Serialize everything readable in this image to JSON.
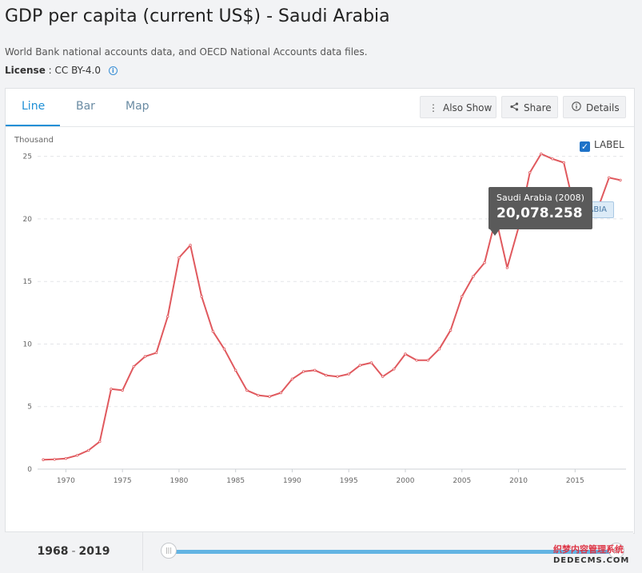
{
  "header": {
    "title": "GDP per capita (current US$) - Saudi Arabia",
    "source": "World Bank national accounts data, and OECD National Accounts data files.",
    "license_label": "License",
    "license_value": ": CC BY-4.0"
  },
  "tabs": [
    {
      "label": "Line",
      "active": true
    },
    {
      "label": "Bar",
      "active": false
    },
    {
      "label": "Map",
      "active": false
    }
  ],
  "toolbar": {
    "also_show": "Also Show",
    "share": "Share",
    "details": "Details"
  },
  "legend_toggle": {
    "label": "LABEL",
    "checked": true
  },
  "tooltip": {
    "name": "Saudi Arabia (2008)",
    "value": "20,078.258"
  },
  "series_tag": "ARABIA",
  "range": {
    "start": "1968",
    "sep": "-",
    "end": "2019"
  },
  "watermark": {
    "line1": "织梦内容管理系统",
    "line2": "DEDECMS.COM"
  },
  "colors": {
    "line": "#e0595e",
    "accent": "#1e8fd6"
  },
  "chart_data": {
    "type": "line",
    "ylabel": "Thousand",
    "ylim": [
      0,
      26
    ],
    "yticks": [
      0,
      5,
      10,
      15,
      20,
      25
    ],
    "xlim": [
      1967.5,
      2019.5
    ],
    "xticks": [
      1970,
      1975,
      1980,
      1985,
      1990,
      1995,
      2000,
      2005,
      2010,
      2015
    ],
    "grid": true,
    "x": [
      1968,
      1969,
      1970,
      1971,
      1972,
      1973,
      1974,
      1975,
      1976,
      1977,
      1978,
      1979,
      1980,
      1981,
      1982,
      1983,
      1984,
      1985,
      1986,
      1987,
      1988,
      1989,
      1990,
      1991,
      1992,
      1993,
      1994,
      1995,
      1996,
      1997,
      1998,
      1999,
      2000,
      2001,
      2002,
      2003,
      2004,
      2005,
      2006,
      2007,
      2008,
      2009,
      2010,
      2011,
      2012,
      2013,
      2014,
      2015,
      2016,
      2017,
      2018,
      2019
    ],
    "series": [
      {
        "name": "Saudi Arabia",
        "values": [
          0.75,
          0.78,
          0.85,
          1.1,
          1.5,
          2.2,
          6.4,
          6.3,
          8.2,
          9.0,
          9.3,
          12.2,
          16.9,
          17.9,
          13.8,
          11.0,
          9.6,
          7.9,
          6.3,
          5.9,
          5.8,
          6.1,
          7.2,
          7.8,
          7.9,
          7.5,
          7.4,
          7.6,
          8.3,
          8.5,
          7.4,
          8.0,
          9.2,
          8.7,
          8.7,
          9.6,
          11.1,
          13.8,
          15.4,
          16.5,
          20.08,
          16.1,
          19.3,
          23.7,
          25.2,
          24.8,
          24.5,
          20.6,
          19.8,
          20.8,
          23.3,
          23.1
        ]
      }
    ]
  }
}
